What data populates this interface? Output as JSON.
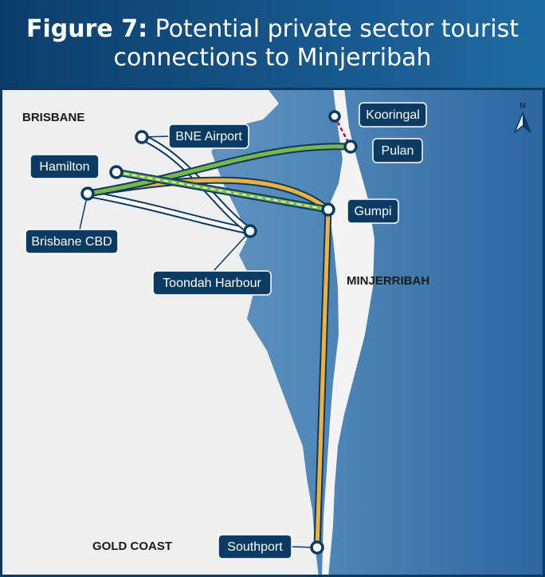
{
  "header": {
    "figure": "Figure 7:",
    "title": "Potential private sector tourist connections to Minjerribah"
  },
  "regions": {
    "brisbane": "BRISBANE",
    "minjerribah": "MINJERRIBAH",
    "gold_coast": "GOLD COAST"
  },
  "places": {
    "bne_airport": "BNE Airport",
    "hamilton": "Hamilton",
    "brisbane_cbd": "Brisbane CBD",
    "toondah_harbour": "Toondah Harbour",
    "kooringal": "Kooringal",
    "pulan": "Pulan",
    "gumpi": "Gumpi",
    "southport": "Southport"
  },
  "north": "N"
}
